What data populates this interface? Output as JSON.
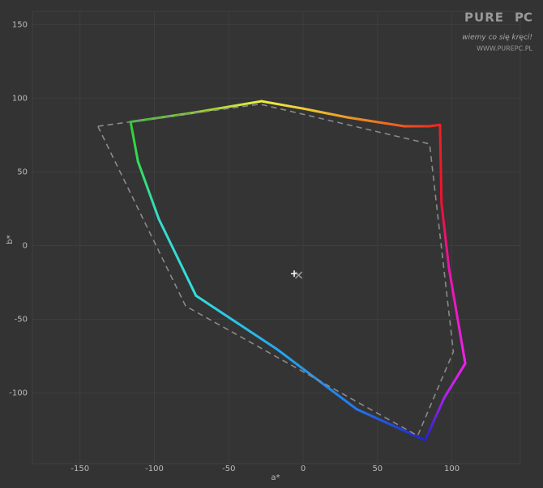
{
  "chart_data": {
    "type": "gamut",
    "xlabel": "a*",
    "ylabel": "b*",
    "xlim": [
      -182,
      146
    ],
    "ylim": [
      -148,
      159
    ],
    "xticks": [
      -150,
      -100,
      -50,
      0,
      50,
      100
    ],
    "yticks": [
      -100,
      -50,
      0,
      50,
      100,
      150
    ],
    "grid": true,
    "series": [
      {
        "style": "solid",
        "x": [
          -116,
          -75,
          -28,
          0,
          30,
          68,
          85,
          92,
          93,
          98,
          109,
          95,
          82,
          36,
          -18,
          -72,
          -97,
          -111,
          -116
        ],
        "y": [
          84,
          90,
          98,
          93,
          87,
          81,
          81,
          82,
          29,
          -15,
          -80,
          -103,
          -132,
          -111,
          -70,
          -34,
          18,
          57,
          84
        ],
        "colors": [
          "#33cc33",
          "#88cc33",
          "#eeee44",
          "#eecc33",
          "#ee9922",
          "#ee5522",
          "#ee3322",
          "#ee2222",
          "#ee1133",
          "#ee11aa",
          "#ee22ee",
          "#aa22ee",
          "#2222cc",
          "#2277ee",
          "#22aaee",
          "#33dddd",
          "#33ddcc",
          "#33dd55",
          "#33cc33"
        ]
      },
      {
        "style": "dashed",
        "color": "#8a8a8a",
        "x": [
          -138,
          -29,
          85,
          101,
          77,
          -79,
          -138
        ],
        "y": [
          81,
          96,
          69,
          -72,
          -129,
          -41,
          81
        ]
      }
    ],
    "markers": {
      "x": [
        -6,
        -3
      ],
      "y": [
        -19,
        -20
      ],
      "colors": [
        "#ffffff",
        "#999999"
      ],
      "shapes": [
        "plus",
        "cross"
      ]
    },
    "watermark": {
      "brand1": "PURE",
      "brand2": "PC",
      "slogan": "wiemy co się kręci!",
      "url": "WWW.PUREPC.PL"
    }
  }
}
